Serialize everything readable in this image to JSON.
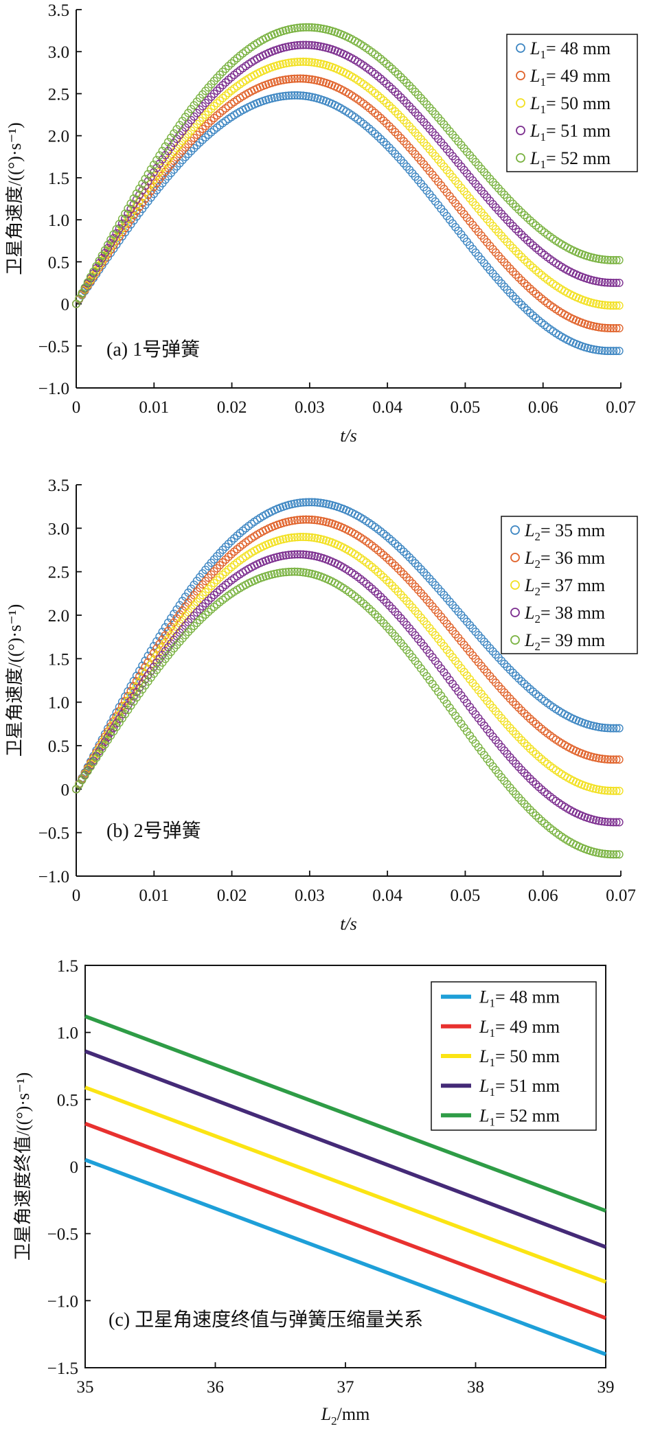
{
  "chart_data": [
    {
      "type": "scatter",
      "marker": "hollow-circle",
      "caption": "(a) 1号弹簧",
      "xlabel": "t/s",
      "ylabel": "卫星角速度/((°)·s⁻¹)",
      "xlim": [
        0,
        0.07
      ],
      "ylim": [
        -1.0,
        3.5
      ],
      "xticks": [
        0,
        0.01,
        0.02,
        0.03,
        0.04,
        0.05,
        0.06,
        0.07
      ],
      "xtick_labels": [
        "0",
        "0.01",
        "0.02",
        "0.03",
        "0.04",
        "0.05",
        "0.06",
        "0.07"
      ],
      "yticks": [
        -1.0,
        -0.5,
        0,
        0.5,
        1.0,
        1.5,
        2.0,
        2.5,
        3.0,
        3.5
      ],
      "ytick_labels": [
        "−1.0",
        "−0.5",
        "0",
        "0.5",
        "1.0",
        "1.5",
        "2.0",
        "2.5",
        "3.0",
        "3.5"
      ],
      "legend_position": "top-right",
      "series": [
        {
          "name": "L₁= 48 mm",
          "var": "L",
          "sub": "1",
          "value_text": "= 48 mm",
          "color": "#3d86c2",
          "peak": 2.48,
          "t_peak": 0.0282,
          "t_end": 0.0685,
          "final": -0.56
        },
        {
          "name": "L₁= 49 mm",
          "var": "L",
          "sub": "1",
          "value_text": "= 49 mm",
          "color": "#e0622a",
          "peak": 2.68,
          "t_peak": 0.0287,
          "t_end": 0.0688,
          "final": -0.29
        },
        {
          "name": "L₁= 50 mm",
          "var": "L",
          "sub": "1",
          "value_text": "= 50 mm",
          "color": "#f2e020",
          "peak": 2.88,
          "t_peak": 0.0291,
          "t_end": 0.069,
          "final": -0.02
        },
        {
          "name": "L₁= 51 mm",
          "var": "L",
          "sub": "1",
          "value_text": "= 51 mm",
          "color": "#7b2d8e",
          "peak": 3.08,
          "t_peak": 0.0294,
          "t_end": 0.069,
          "final": 0.25
        },
        {
          "name": "L₁= 52 mm",
          "var": "L",
          "sub": "1",
          "value_text": "= 52 mm",
          "color": "#79b240",
          "peak": 3.29,
          "t_peak": 0.0297,
          "t_end": 0.069,
          "final": 0.52
        }
      ]
    },
    {
      "type": "scatter",
      "marker": "hollow-circle",
      "caption": "(b) 2号弹簧",
      "xlabel": "t/s",
      "ylabel": "卫星角速度/((°)·s⁻¹)",
      "xlim": [
        0,
        0.07
      ],
      "ylim": [
        -1.0,
        3.5
      ],
      "xticks": [
        0,
        0.01,
        0.02,
        0.03,
        0.04,
        0.05,
        0.06,
        0.07
      ],
      "xtick_labels": [
        "0",
        "0.01",
        "0.02",
        "0.03",
        "0.04",
        "0.05",
        "0.06",
        "0.07"
      ],
      "yticks": [
        -1.0,
        -0.5,
        0,
        0.5,
        1.0,
        1.5,
        2.0,
        2.5,
        3.0,
        3.5
      ],
      "ytick_labels": [
        "−1.0",
        "−0.5",
        "0",
        "0.5",
        "1.0",
        "1.5",
        "2.0",
        "2.5",
        "3.0",
        "3.5"
      ],
      "legend_position": "top-right",
      "series": [
        {
          "name": "L₂= 35 mm",
          "var": "L",
          "sub": "2",
          "value_text": "= 35 mm",
          "color": "#3d86c2",
          "peak": 3.3,
          "t_peak": 0.03,
          "t_end": 0.069,
          "final": 0.7
        },
        {
          "name": "L₂= 36 mm",
          "var": "L",
          "sub": "2",
          "value_text": "= 36 mm",
          "color": "#e0622a",
          "peak": 3.1,
          "t_peak": 0.0296,
          "t_end": 0.069,
          "final": 0.34
        },
        {
          "name": "L₂= 37 mm",
          "var": "L",
          "sub": "2",
          "value_text": "= 37 mm",
          "color": "#f2e020",
          "peak": 2.9,
          "t_peak": 0.0291,
          "t_end": 0.069,
          "final": -0.02
        },
        {
          "name": "L₂= 38 mm",
          "var": "L",
          "sub": "2",
          "value_text": "= 38 mm",
          "color": "#7b2d8e",
          "peak": 2.7,
          "t_peak": 0.0286,
          "t_end": 0.069,
          "final": -0.38
        },
        {
          "name": "L₂= 39 mm",
          "var": "L",
          "sub": "2",
          "value_text": "= 39 mm",
          "color": "#79b240",
          "peak": 2.5,
          "t_peak": 0.028,
          "t_end": 0.069,
          "final": -0.75
        }
      ]
    },
    {
      "type": "line",
      "caption": "(c) 卫星角速度终值与弹簧压缩量关系",
      "xlabel": "L₂/mm",
      "xlabel_var": "L",
      "xlabel_sub": "2",
      "xlabel_unit": "/mm",
      "ylabel": "卫星角速度终值/((°)·s⁻¹)",
      "xlim": [
        35,
        39
      ],
      "ylim": [
        -1.5,
        1.5
      ],
      "xticks": [
        35,
        36,
        37,
        38,
        39
      ],
      "xtick_labels": [
        "35",
        "36",
        "37",
        "38",
        "39"
      ],
      "yticks": [
        -1.5,
        -1.0,
        -0.5,
        0,
        0.5,
        1.0,
        1.5
      ],
      "ytick_labels": [
        "−1.5",
        "−1.0",
        "−0.5",
        "0",
        "0.5",
        "1.0",
        "1.5"
      ],
      "legend_position": "top-right",
      "x": [
        35,
        39
      ],
      "series": [
        {
          "name": "L₁= 48 mm",
          "var": "L",
          "sub": "1",
          "value_text": "= 48 mm",
          "color": "#1e9fd8",
          "values": [
            0.05,
            -1.4
          ]
        },
        {
          "name": "L₁= 49 mm",
          "var": "L",
          "sub": "1",
          "value_text": "= 49 mm",
          "color": "#e8312f",
          "values": [
            0.32,
            -1.13
          ]
        },
        {
          "name": "L₁= 50 mm",
          "var": "L",
          "sub": "1",
          "value_text": "= 50 mm",
          "color": "#fbe414",
          "values": [
            0.59,
            -0.86
          ]
        },
        {
          "name": "L₁= 51 mm",
          "var": "L",
          "sub": "1",
          "value_text": "= 51 mm",
          "color": "#442a77",
          "values": [
            0.86,
            -0.6
          ]
        },
        {
          "name": "L₁= 52 mm",
          "var": "L",
          "sub": "1",
          "value_text": "= 52 mm",
          "color": "#2e9c46",
          "values": [
            1.12,
            -0.33
          ]
        }
      ]
    }
  ]
}
